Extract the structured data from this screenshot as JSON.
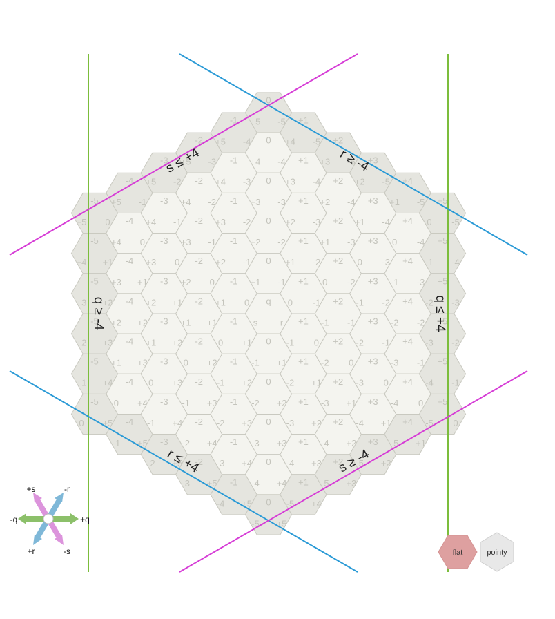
{
  "grid": {
    "radius": 5,
    "constraint_range": 4,
    "colors": {
      "inside_fill": "#f4f4ef",
      "outside_fill": "#e5e5df",
      "hex_stroke": "#c9c9c0",
      "coord_text": "#c4c4bc",
      "q_line": "#7cbd3c",
      "r_line": "#2a9ad6",
      "s_line": "#d63cd6"
    }
  },
  "boundaries": {
    "q_min": "q ≥ -4",
    "q_max": "q ≤ +4",
    "r_min": "r ≥ -4",
    "r_max": "r ≤ +4",
    "s_min": "s ≥ -4",
    "s_max": "s ≤ +4"
  },
  "center_labels": {
    "q": "q",
    "r": "r",
    "s": "s"
  },
  "axes_legend": {
    "plus_q": "+q",
    "minus_q": "-q",
    "plus_r": "+r",
    "minus_r": "-r",
    "plus_s": "+s",
    "minus_s": "-s",
    "colors": {
      "q": "#8cc06a",
      "r": "#7fb8d8",
      "s": "#dc94dc"
    }
  },
  "orientation": {
    "flat_label": "flat",
    "pointy_label": "pointy",
    "selected": "flat",
    "colors": {
      "selected": "#dea0a0",
      "unselected": "#e8e8e8"
    }
  }
}
